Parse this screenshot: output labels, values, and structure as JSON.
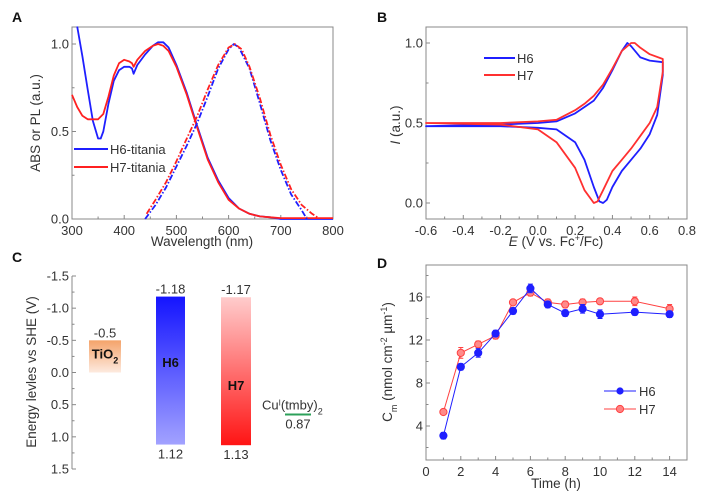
{
  "chart_data": [
    {
      "panel": "A",
      "type": "line",
      "xlabel": "Wavelength (nm)",
      "ylabel": "ABS or PL (a.u.)",
      "xlim": [
        300,
        800
      ],
      "ylim": [
        0,
        1.1
      ],
      "xticks": [
        "300",
        "400",
        "500",
        "600",
        "700",
        "800"
      ],
      "yticks": [
        "0.0",
        "0.5",
        "1.0"
      ],
      "legend": {
        "position": "center-left",
        "entries": [
          "H6-titania",
          "H7-titania"
        ]
      },
      "series": [
        {
          "name": "H6-titania ABS",
          "color": "#1f1fff",
          "style": "solid",
          "x": [
            310,
            320,
            330,
            340,
            350,
            355,
            360,
            370,
            380,
            390,
            400,
            410,
            415,
            418,
            425,
            440,
            455,
            465,
            475,
            485,
            500,
            520,
            540,
            560,
            580,
            600,
            620,
            640,
            660,
            680,
            700,
            800
          ],
          "y": [
            1.1,
            0.93,
            0.74,
            0.56,
            0.46,
            0.46,
            0.5,
            0.66,
            0.79,
            0.85,
            0.87,
            0.87,
            0.86,
            0.83,
            0.88,
            0.94,
            0.99,
            1.01,
            1.01,
            0.98,
            0.88,
            0.72,
            0.53,
            0.35,
            0.22,
            0.12,
            0.06,
            0.03,
            0.015,
            0.01,
            0.0,
            0.0
          ]
        },
        {
          "name": "H7-titania ABS",
          "color": "#ff2020",
          "style": "solid",
          "x": [
            300,
            310,
            320,
            330,
            340,
            350,
            360,
            370,
            380,
            390,
            400,
            410,
            415,
            418,
            425,
            440,
            455,
            465,
            475,
            485,
            500,
            520,
            540,
            560,
            580,
            600,
            620,
            640,
            660,
            680,
            700,
            800
          ],
          "y": [
            0.71,
            0.64,
            0.59,
            0.57,
            0.57,
            0.57,
            0.6,
            0.7,
            0.82,
            0.89,
            0.91,
            0.9,
            0.89,
            0.87,
            0.91,
            0.96,
            0.99,
            1.0,
            0.99,
            0.96,
            0.87,
            0.71,
            0.52,
            0.34,
            0.21,
            0.11,
            0.06,
            0.03,
            0.015,
            0.01,
            0.005,
            0.005
          ]
        },
        {
          "name": "H6-titania PL",
          "color": "#1f1fff",
          "style": "dash-dot",
          "x": [
            440,
            460,
            480,
            500,
            520,
            540,
            560,
            580,
            600,
            610,
            620,
            640,
            660,
            680,
            700,
            720,
            740,
            750
          ],
          "y": [
            0.0,
            0.08,
            0.18,
            0.3,
            0.42,
            0.55,
            0.7,
            0.86,
            0.97,
            1.0,
            0.98,
            0.86,
            0.66,
            0.45,
            0.28,
            0.14,
            0.05,
            0.0
          ]
        },
        {
          "name": "H7-titania PL",
          "color": "#ff2020",
          "style": "dash-dot",
          "x": [
            443,
            460,
            480,
            500,
            520,
            540,
            560,
            580,
            600,
            612,
            625,
            640,
            660,
            680,
            700,
            720,
            740,
            760,
            770
          ],
          "y": [
            0.03,
            0.11,
            0.21,
            0.33,
            0.46,
            0.59,
            0.74,
            0.88,
            0.98,
            1.0,
            0.97,
            0.87,
            0.69,
            0.48,
            0.31,
            0.17,
            0.08,
            0.03,
            0.01
          ]
        }
      ]
    },
    {
      "panel": "B",
      "type": "line",
      "xlabel": "E (V vs. Fc+/Fc)",
      "ylabel": "I (a.u.)",
      "xlim": [
        -0.6,
        0.8
      ],
      "ylim": [
        -0.1,
        1.1
      ],
      "xticks": [
        "-0.6",
        "-0.4",
        "-0.2",
        "0.0",
        "0.2",
        "0.4",
        "0.6",
        "0.8"
      ],
      "yticks": [
        "0.0",
        "0.5",
        "1.0"
      ],
      "legend": {
        "position": "top-left",
        "entries": [
          "H6",
          "H7"
        ]
      },
      "series": [
        {
          "name": "H6",
          "color": "#1f1fff",
          "x": [
            -0.6,
            -0.2,
            0.0,
            0.1,
            0.2,
            0.25,
            0.3,
            0.35,
            0.4,
            0.45,
            0.48,
            0.5,
            0.55,
            0.6,
            0.67,
            0.67,
            0.64,
            0.6,
            0.55,
            0.5,
            0.45,
            0.4,
            0.37,
            0.35,
            0.33,
            0.3,
            0.25,
            0.2,
            0.1,
            0.0,
            -0.2,
            -0.6
          ],
          "y": [
            0.48,
            0.49,
            0.5,
            0.51,
            0.56,
            0.6,
            0.64,
            0.72,
            0.83,
            0.95,
            1.0,
            0.98,
            0.91,
            0.89,
            0.88,
            0.8,
            0.55,
            0.43,
            0.34,
            0.27,
            0.2,
            0.1,
            0.02,
            0.0,
            0.01,
            0.1,
            0.27,
            0.38,
            0.46,
            0.47,
            0.48,
            0.48
          ]
        },
        {
          "name": "H7",
          "color": "#ff3030",
          "x": [
            -0.6,
            -0.2,
            0.0,
            0.1,
            0.2,
            0.25,
            0.3,
            0.35,
            0.4,
            0.45,
            0.5,
            0.52,
            0.55,
            0.6,
            0.67,
            0.67,
            0.64,
            0.6,
            0.55,
            0.5,
            0.45,
            0.4,
            0.35,
            0.32,
            0.3,
            0.25,
            0.2,
            0.1,
            0.0,
            -0.2,
            -0.6
          ],
          "y": [
            0.5,
            0.5,
            0.51,
            0.52,
            0.58,
            0.62,
            0.67,
            0.74,
            0.84,
            0.95,
            1.0,
            1.0,
            0.97,
            0.93,
            0.9,
            0.82,
            0.6,
            0.5,
            0.42,
            0.34,
            0.27,
            0.2,
            0.08,
            0.01,
            0.0,
            0.08,
            0.22,
            0.38,
            0.46,
            0.49,
            0.5
          ]
        }
      ]
    },
    {
      "panel": "C",
      "type": "bar",
      "ylabel": "Energy levles vs SHE (V)",
      "ylim": [
        -1.5,
        1.5
      ],
      "y_inverted": true,
      "yticks": [
        "-1.5",
        "-1.0",
        "-0.5",
        "0.0",
        "0.5",
        "1.0",
        "1.5"
      ],
      "bars": [
        {
          "name": "TiO2",
          "label_main": "TiO",
          "label_sub": "2",
          "top": -0.5,
          "bottom": 0.0,
          "top_label": "-0.5",
          "bottom_label": "",
          "color_top": "#f4a36a",
          "color_bottom": "#fde9dc"
        },
        {
          "name": "H6",
          "label_main": "H6",
          "label_sub": "",
          "top": -1.18,
          "bottom": 1.12,
          "top_label": "-1.18",
          "bottom_label": "1.12",
          "color_top": "#1414ff",
          "color_bottom": "#a0a0ff"
        },
        {
          "name": "H7",
          "label_main": "H7",
          "label_sub": "",
          "top": -1.17,
          "bottom": 1.13,
          "top_label": "-1.17",
          "bottom_label": "1.13",
          "color_top": "#ffcaca",
          "color_bottom": "#ff1414"
        }
      ],
      "level": {
        "name": "CuI(tmby)2",
        "label_base": "Cu",
        "label_sup": "I",
        "label_rest": "(tmby)",
        "label_sub": "2",
        "value": 0.87,
        "value_label": "0.87",
        "color": "#2ca05a"
      }
    },
    {
      "panel": "D",
      "type": "line",
      "xlabel": "Time (h)",
      "ylabel_main": "C",
      "ylabel_sub": "m",
      "ylabel_rest": " (nmol cm",
      "ylabel_sup1": "-2",
      "ylabel_mid": " µm",
      "ylabel_sup2": "-1",
      "ylabel_end": ")",
      "xlim": [
        0,
        15
      ],
      "ylim": [
        1,
        19
      ],
      "xticks": [
        "0",
        "2",
        "4",
        "6",
        "8",
        "10",
        "12",
        "14"
      ],
      "yticks": [
        "4",
        "8",
        "12",
        "16"
      ],
      "legend": {
        "position": "center-right",
        "entries": [
          "H6",
          "H7"
        ]
      },
      "x": [
        1,
        2,
        3,
        4,
        5,
        6,
        7,
        8,
        9,
        10,
        12,
        14
      ],
      "series": [
        {
          "name": "H6",
          "color": "#1f1fff",
          "values": [
            3.1,
            9.5,
            10.8,
            12.6,
            14.7,
            16.8,
            15.3,
            14.5,
            14.9,
            14.4,
            14.6,
            14.4
          ],
          "errors": [
            0.3,
            0.3,
            0.4,
            0.3,
            0.3,
            0.4,
            0.3,
            0.3,
            0.4,
            0.4,
            0.3,
            0.3
          ]
        },
        {
          "name": "H7",
          "color": "#ff4040",
          "values": [
            5.3,
            10.8,
            11.6,
            12.4,
            15.5,
            16.4,
            15.5,
            15.3,
            15.5,
            15.6,
            15.6,
            14.9
          ],
          "errors": [
            0.2,
            0.5,
            0.3,
            0.3,
            0.2,
            0.3,
            0.3,
            0.3,
            0.3,
            0.2,
            0.4,
            0.4
          ]
        }
      ]
    }
  ],
  "panels": {
    "A": {
      "letter": "A"
    },
    "B": {
      "letter": "B"
    },
    "C": {
      "letter": "C"
    },
    "D": {
      "letter": "D"
    }
  }
}
